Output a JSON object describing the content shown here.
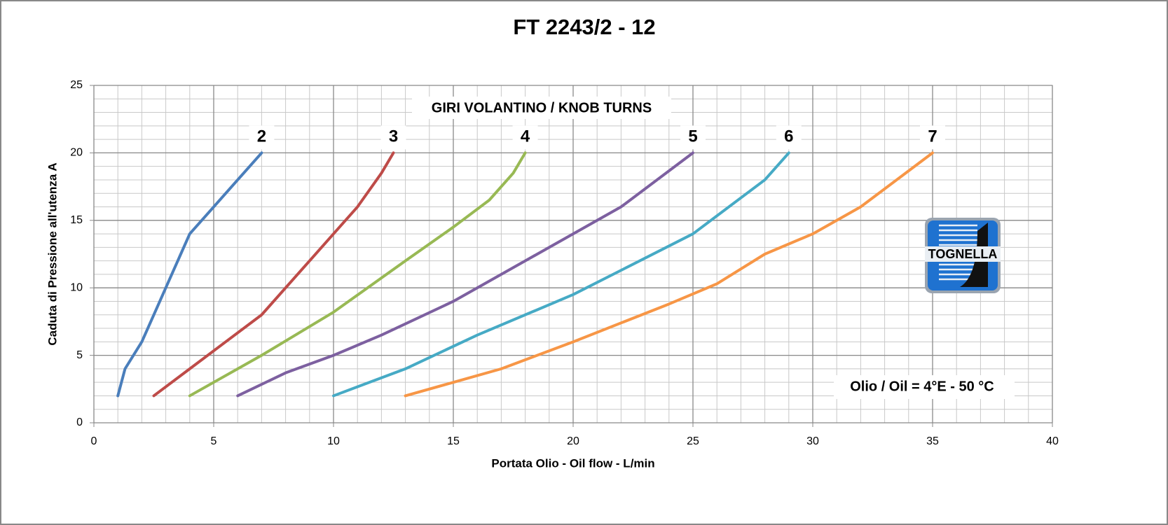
{
  "chart_data": {
    "type": "line",
    "title": "FT 2243/2 - 12",
    "xlabel": "Portata Olio - Oil flow  - L/min",
    "ylabel": "Caduta di Pressione all'utenza A",
    "legend_title": "GIRI VOLANTINO / KNOB TURNS",
    "annotation": "Olio / Oil = 4°E - 50 °C",
    "logo_text": "TOGNELLA",
    "xlim": [
      0,
      40
    ],
    "xticks": [
      0,
      5,
      10,
      15,
      20,
      25,
      30,
      35,
      40
    ],
    "ylim": [
      0,
      25
    ],
    "yticks": [
      0,
      5,
      10,
      15,
      20,
      25
    ],
    "grid": true,
    "minor_grid": 1,
    "series": [
      {
        "name": "2",
        "color": "#4a7ebb",
        "x": [
          1,
          1.3,
          2,
          2.5,
          3,
          3.5,
          4,
          5,
          6,
          7
        ],
        "values": [
          2,
          4,
          6,
          8,
          10,
          12,
          14,
          16,
          18,
          20
        ]
      },
      {
        "name": "3",
        "color": "#be4b48",
        "x": [
          2.5,
          4,
          5.5,
          7,
          8,
          9,
          10,
          11,
          12,
          12.5
        ],
        "values": [
          2,
          4,
          6,
          8,
          10,
          12,
          14,
          16,
          18.5,
          20
        ]
      },
      {
        "name": "4",
        "color": "#98b954",
        "x": [
          4,
          7,
          10,
          13,
          15,
          16.5,
          17.5,
          18
        ],
        "values": [
          2,
          5,
          8.2,
          12,
          14.5,
          16.5,
          18.5,
          20
        ]
      },
      {
        "name": "5",
        "color": "#7d60a0",
        "x": [
          6,
          8,
          10,
          12,
          15,
          18,
          22,
          25
        ],
        "values": [
          2,
          3.7,
          5,
          6.5,
          9,
          12,
          16,
          20
        ]
      },
      {
        "name": "6",
        "color": "#46aac5",
        "x": [
          10,
          13,
          16,
          20,
          25,
          28,
          29
        ],
        "values": [
          2,
          4,
          6.5,
          9.5,
          14,
          18,
          20
        ]
      },
      {
        "name": "7",
        "color": "#f79646",
        "x": [
          13,
          15,
          17,
          20,
          24,
          26,
          28,
          30,
          32,
          35
        ],
        "values": [
          2,
          3,
          4,
          6,
          8.8,
          10.3,
          12.5,
          14,
          16,
          20
        ]
      }
    ]
  }
}
